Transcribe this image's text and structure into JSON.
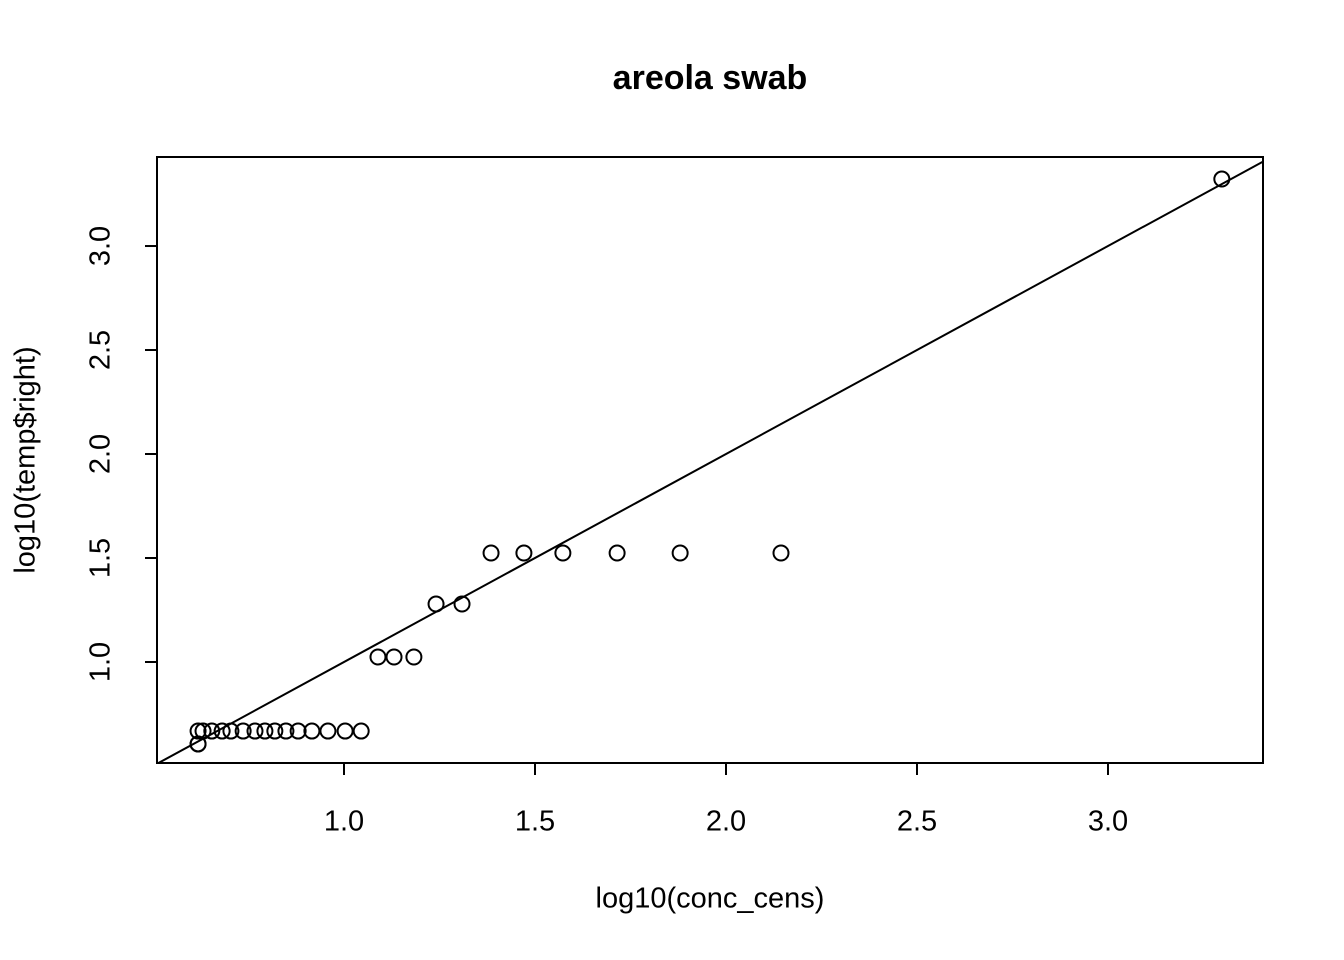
{
  "chart_data": {
    "type": "scatter",
    "title": "areola swab",
    "x_label": "log10(conc_cens)",
    "y_label": "log10(temp$right)",
    "x": [
      0.618,
      0.618,
      0.618,
      0.631,
      0.654,
      0.681,
      0.704,
      0.736,
      0.767,
      0.793,
      0.819,
      0.848,
      0.88,
      0.916,
      0.958,
      1.003,
      1.045,
      1.089,
      1.131,
      1.183,
      1.241,
      1.309,
      1.385,
      1.471,
      1.573,
      1.715,
      1.88,
      2.144,
      3.298
    ],
    "y": [
      0.668,
      0.606,
      0.606,
      0.668,
      0.668,
      0.668,
      0.668,
      0.668,
      0.668,
      0.668,
      0.668,
      0.668,
      0.668,
      0.668,
      0.668,
      0.668,
      0.668,
      1.024,
      1.024,
      1.024,
      1.279,
      1.279,
      1.524,
      1.524,
      1.524,
      1.524,
      1.524,
      1.524,
      3.322
    ],
    "color": "#000000",
    "identity_line": true,
    "xlim": [
      0.5105,
      3.4058
    ],
    "xticks": [
      1.0,
      1.5,
      2.0,
      2.5,
      3.0
    ],
    "ylim": [
      0.5144,
      3.428
    ],
    "yticks": [
      1.0,
      1.5,
      2.0,
      2.5,
      3.0
    ]
  }
}
